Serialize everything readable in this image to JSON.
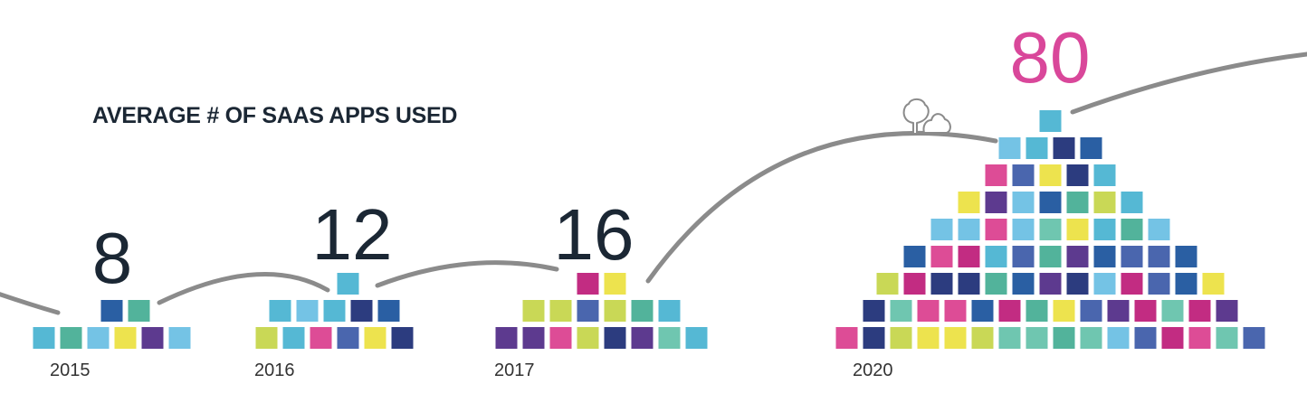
{
  "chart_data": {
    "type": "pictograph",
    "title": "AVERAGE # OF SAAS APPS USED",
    "categories": [
      "2015",
      "2016",
      "2017",
      "2020"
    ],
    "values": [
      8,
      12,
      16,
      80
    ],
    "value_labels": [
      "8",
      "12",
      "16",
      "80"
    ],
    "highlight_color": "#d9479a",
    "label_color": "#1b2734",
    "tile_palette": [
      "#4a66ae",
      "#6fc6b0",
      "#5d3a8f",
      "#c22c82",
      "#55b8d4",
      "#2c3c7f",
      "#74c3e5",
      "#ede34e",
      "#c9d856",
      "#dd4c96",
      "#52b39b",
      "#2a5fa3"
    ]
  }
}
